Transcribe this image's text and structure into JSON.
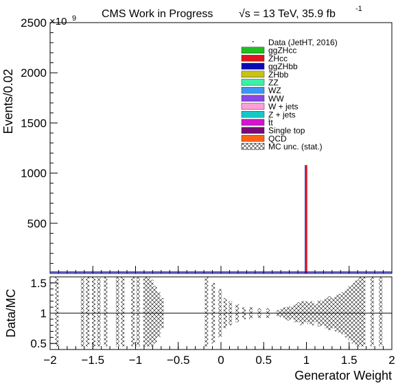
{
  "header": {
    "title": "CMS Work in Progress",
    "energy": "√s = 13 TeV, 35.9 fb",
    "lumi_exponent": "-1"
  },
  "chart_data": [
    {
      "type": "bar",
      "panel": "main",
      "ylabel": "Events/0.02",
      "y_multiplier": "×10",
      "y_multiplier_exponent": "9",
      "xlim": [
        -2,
        2
      ],
      "ylim": [
        0,
        2500
      ],
      "yticks": [
        500,
        1000,
        1500,
        2000,
        2500
      ],
      "bin_width": 0.02,
      "legend_position": "top-right",
      "legend": [
        {
          "label": "Data (JetHT, 2016)",
          "kind": "point",
          "color": "#000000"
        },
        {
          "label": "ggZHcc",
          "kind": "fill",
          "color": "#1fbf1f"
        },
        {
          "label": "ZHcc",
          "kind": "fill",
          "color": "#e0141e"
        },
        {
          "label": "ggZHbb",
          "kind": "fill",
          "color": "#0a0ab4"
        },
        {
          "label": "ZHbb",
          "kind": "fill",
          "color": "#c8c314"
        },
        {
          "label": "ZZ",
          "kind": "fill",
          "color": "#3cf0a5"
        },
        {
          "label": "WZ",
          "kind": "fill",
          "color": "#3c96f5"
        },
        {
          "label": "WW",
          "kind": "fill",
          "color": "#8c46e6"
        },
        {
          "label": "W + jets",
          "kind": "fill",
          "color": "#ff9ed7"
        },
        {
          "label": "Z + jets",
          "kind": "fill",
          "color": "#14c8c8"
        },
        {
          "label": "t̄t",
          "kind": "fill",
          "color": "#d214d2"
        },
        {
          "label": "Single top",
          "kind": "fill",
          "color": "#780a78"
        },
        {
          "label": "QCD",
          "kind": "fill",
          "color": "#fa6414"
        },
        {
          "label": "MC unc. (stat.)",
          "kind": "hatch",
          "color": "#000000"
        }
      ],
      "series": [
        {
          "x": 1.0,
          "value": 1080,
          "color": "#e0141e"
        }
      ],
      "baseline_color": "#0a0ab4"
    },
    {
      "type": "scatter",
      "panel": "ratio",
      "ylabel": "Data/MC",
      "xlabel": "Generator Weight",
      "xlim": [
        -2,
        2
      ],
      "ylim": [
        0.4,
        1.6
      ],
      "yticks": [
        0.5,
        1,
        1.5
      ],
      "xticks": [
        -2,
        -1.5,
        -1,
        -0.5,
        0,
        0.5,
        1,
        1.5,
        2
      ],
      "reference_line": 1,
      "uncertainty_bins": [
        {
          "x": -1.92,
          "lo": 0.45,
          "hi": 1.6
        },
        {
          "x": -1.62,
          "lo": 0.45,
          "hi": 1.6
        },
        {
          "x": -1.56,
          "lo": 0.45,
          "hi": 1.6
        },
        {
          "x": -1.49,
          "lo": 0.45,
          "hi": 1.6
        },
        {
          "x": -1.43,
          "lo": 0.45,
          "hi": 1.6
        },
        {
          "x": -1.35,
          "lo": 0.45,
          "hi": 1.6
        },
        {
          "x": -1.21,
          "lo": 0.45,
          "hi": 1.6
        },
        {
          "x": -1.15,
          "lo": 0.45,
          "hi": 1.6
        },
        {
          "x": -1.03,
          "lo": 0.45,
          "hi": 1.6
        },
        {
          "x": -0.97,
          "lo": 0.45,
          "hi": 1.6
        },
        {
          "x": -0.89,
          "lo": 0.45,
          "hi": 1.6
        },
        {
          "x": -0.85,
          "lo": 0.45,
          "hi": 1.6
        },
        {
          "x": -0.81,
          "lo": 0.45,
          "hi": 1.55
        },
        {
          "x": -0.77,
          "lo": 0.5,
          "hi": 1.45
        },
        {
          "x": -0.73,
          "lo": 0.6,
          "hi": 1.35
        },
        {
          "x": -0.69,
          "lo": 0.75,
          "hi": 1.25
        },
        {
          "x": -0.17,
          "lo": 0.45,
          "hi": 1.6
        },
        {
          "x": -0.09,
          "lo": 0.5,
          "hi": 1.5
        },
        {
          "x": -0.01,
          "lo": 0.6,
          "hi": 1.4
        },
        {
          "x": 0.05,
          "lo": 0.75,
          "hi": 1.25
        },
        {
          "x": 0.11,
          "lo": 0.8,
          "hi": 1.2
        },
        {
          "x": 0.19,
          "lo": 0.85,
          "hi": 1.15
        },
        {
          "x": 0.27,
          "lo": 0.9,
          "hi": 1.1
        },
        {
          "x": 0.35,
          "lo": 0.9,
          "hi": 1.1
        },
        {
          "x": 0.45,
          "lo": 0.92,
          "hi": 1.08
        },
        {
          "x": 0.55,
          "lo": 0.92,
          "hi": 1.08
        },
        {
          "x": 0.67,
          "lo": 0.95,
          "hi": 1.05
        },
        {
          "x": 0.71,
          "lo": 0.93,
          "hi": 1.07
        },
        {
          "x": 0.75,
          "lo": 0.9,
          "hi": 1.1
        },
        {
          "x": 0.79,
          "lo": 0.88,
          "hi": 1.12
        },
        {
          "x": 0.83,
          "lo": 0.9,
          "hi": 1.1
        },
        {
          "x": 0.87,
          "lo": 0.85,
          "hi": 1.15
        },
        {
          "x": 0.91,
          "lo": 0.85,
          "hi": 1.18
        },
        {
          "x": 0.95,
          "lo": 0.8,
          "hi": 1.2
        },
        {
          "x": 0.99,
          "lo": 0.85,
          "hi": 1.2
        },
        {
          "x": 1.03,
          "lo": 0.82,
          "hi": 1.18
        },
        {
          "x": 1.07,
          "lo": 0.8,
          "hi": 1.2
        },
        {
          "x": 1.11,
          "lo": 0.85,
          "hi": 1.15
        },
        {
          "x": 1.15,
          "lo": 0.78,
          "hi": 1.22
        },
        {
          "x": 1.19,
          "lo": 0.8,
          "hi": 1.2
        },
        {
          "x": 1.23,
          "lo": 0.75,
          "hi": 1.25
        },
        {
          "x": 1.27,
          "lo": 0.72,
          "hi": 1.28
        },
        {
          "x": 1.31,
          "lo": 0.75,
          "hi": 1.25
        },
        {
          "x": 1.35,
          "lo": 0.7,
          "hi": 1.3
        },
        {
          "x": 1.39,
          "lo": 0.68,
          "hi": 1.32
        },
        {
          "x": 1.43,
          "lo": 0.65,
          "hi": 1.35
        },
        {
          "x": 1.47,
          "lo": 0.6,
          "hi": 1.4
        },
        {
          "x": 1.51,
          "lo": 0.55,
          "hi": 1.45
        },
        {
          "x": 1.55,
          "lo": 0.5,
          "hi": 1.5
        },
        {
          "x": 1.59,
          "lo": 0.45,
          "hi": 1.55
        },
        {
          "x": 1.63,
          "lo": 0.45,
          "hi": 1.6
        },
        {
          "x": 1.67,
          "lo": 0.45,
          "hi": 1.6
        },
        {
          "x": 1.77,
          "lo": 0.45,
          "hi": 1.6
        },
        {
          "x": 1.87,
          "lo": 0.45,
          "hi": 1.6
        }
      ]
    }
  ]
}
